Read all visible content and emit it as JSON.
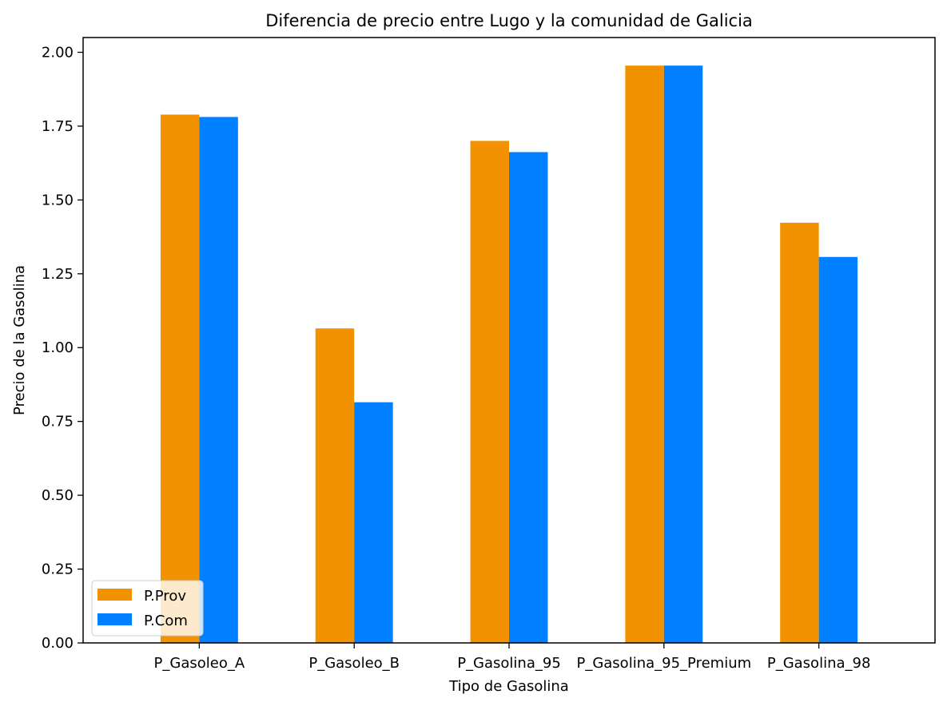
{
  "chart_data": {
    "type": "bar",
    "title": "Diferencia de precio entre Lugo y la comunidad de Galicia",
    "xlabel": "Tipo de Gasolina",
    "ylabel": "Precio de la Gasolina",
    "categories": [
      "P_Gasoleo_A",
      "P_Gasoleo_B",
      "P_Gasolina_95",
      "P_Gasolina_95_Premium",
      "P_Gasolina_98"
    ],
    "series": [
      {
        "name": "P.Prov",
        "color": "#f39200",
        "values": [
          1.789,
          1.065,
          1.7,
          1.955,
          1.423
        ]
      },
      {
        "name": "P.Com",
        "color": "#0080ff",
        "values": [
          1.781,
          0.815,
          1.662,
          1.955,
          1.307
        ]
      }
    ],
    "ylim": [
      0,
      2.05
    ],
    "yticks": [
      "0.00",
      "0.25",
      "0.50",
      "0.75",
      "1.00",
      "1.25",
      "1.50",
      "1.75",
      "2.00"
    ],
    "grid": false,
    "legend_position": "lower-left"
  }
}
